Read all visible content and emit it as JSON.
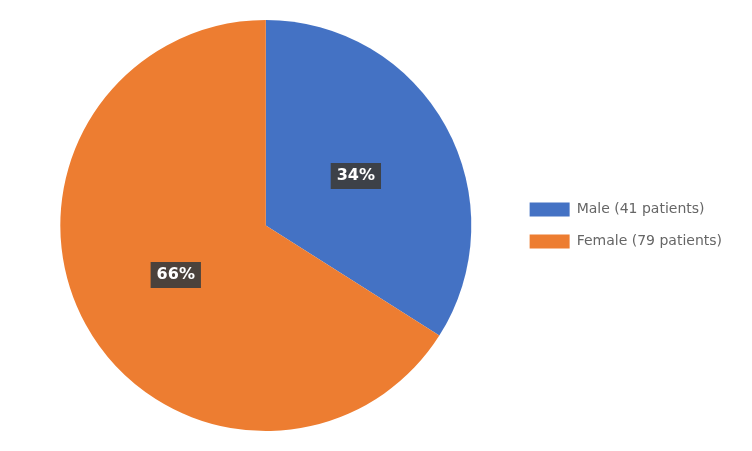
{
  "chart_data": {
    "type": "pie",
    "categories": [
      "Male (41 patients)",
      "Female (79 patients)"
    ],
    "values": [
      34,
      66
    ],
    "value_labels": [
      "34%",
      "66%"
    ],
    "colors": [
      "#4472C4",
      "#ED7D31"
    ],
    "data_labels": true,
    "legend": "right"
  }
}
